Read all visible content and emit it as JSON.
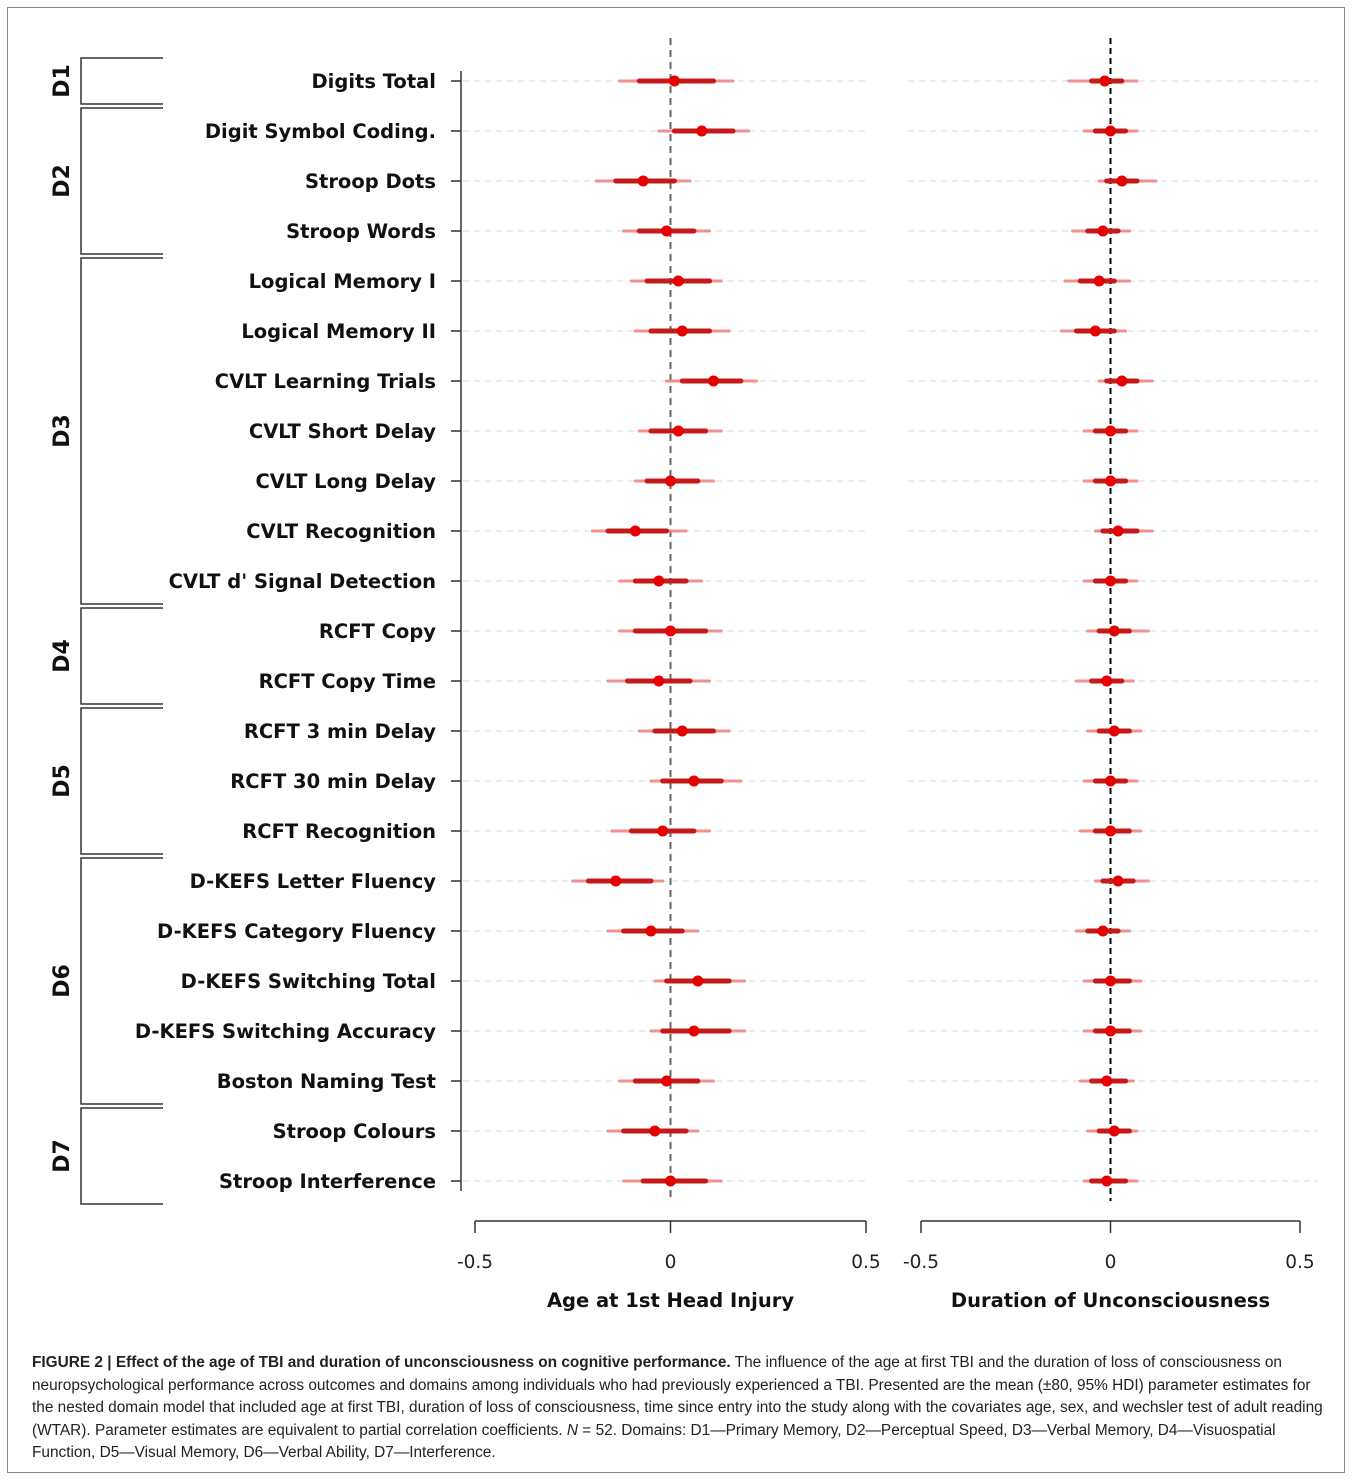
{
  "chart_data": {
    "type": "forest",
    "outcomes": [
      "Digits Total",
      "Digit Symbol Coding.",
      "Stroop Dots",
      "Stroop Words",
      "Logical Memory I",
      "Logical Memory II",
      "CVLT Learning Trials",
      "CVLT Short Delay",
      "CVLT Long Delay",
      "CVLT Recognition",
      "CVLT d' Signal Detection",
      "RCFT Copy",
      "RCFT Copy Time",
      "RCFT 3 min Delay",
      "RCFT 30 min Delay",
      "RCFT Recognition",
      "D-KEFS Letter Fluency",
      "D-KEFS Category Fluency",
      "D-KEFS Switching Total",
      "D-KEFS Switching Accuracy",
      "Boston Naming Test",
      "Stroop Colours",
      "Stroop Interference"
    ],
    "domains": [
      {
        "label": "D1",
        "first": 0,
        "last": 0
      },
      {
        "label": "D2",
        "first": 1,
        "last": 3
      },
      {
        "label": "D3",
        "first": 4,
        "last": 10
      },
      {
        "label": "D4",
        "first": 11,
        "last": 12
      },
      {
        "label": "D5",
        "first": 13,
        "last": 15
      },
      {
        "label": "D6",
        "first": 16,
        "last": 20
      },
      {
        "label": "D7",
        "first": 21,
        "last": 22
      }
    ],
    "panels": [
      {
        "xlabel": "Age at 1st Head Injury",
        "xlim": [
          -0.5,
          0.5
        ],
        "ticks": [
          -0.5,
          0,
          0.5
        ],
        "tick_labels": [
          "-0.5",
          "0",
          "0.5"
        ],
        "estimates": [
          {
            "mean": 0.01,
            "hdi80": [
              -0.08,
              0.11
            ],
            "hdi95": [
              -0.13,
              0.16
            ]
          },
          {
            "mean": 0.08,
            "hdi80": [
              0.01,
              0.16
            ],
            "hdi95": [
              -0.03,
              0.2
            ]
          },
          {
            "mean": -0.07,
            "hdi80": [
              -0.14,
              0.01
            ],
            "hdi95": [
              -0.19,
              0.05
            ]
          },
          {
            "mean": -0.01,
            "hdi80": [
              -0.08,
              0.06
            ],
            "hdi95": [
              -0.12,
              0.1
            ]
          },
          {
            "mean": 0.02,
            "hdi80": [
              -0.06,
              0.1
            ],
            "hdi95": [
              -0.1,
              0.13
            ]
          },
          {
            "mean": 0.03,
            "hdi80": [
              -0.05,
              0.1
            ],
            "hdi95": [
              -0.09,
              0.15
            ]
          },
          {
            "mean": 0.11,
            "hdi80": [
              0.03,
              0.18
            ],
            "hdi95": [
              -0.01,
              0.22
            ]
          },
          {
            "mean": 0.02,
            "hdi80": [
              -0.05,
              0.09
            ],
            "hdi95": [
              -0.08,
              0.13
            ]
          },
          {
            "mean": 0.0,
            "hdi80": [
              -0.06,
              0.07
            ],
            "hdi95": [
              -0.09,
              0.11
            ]
          },
          {
            "mean": -0.09,
            "hdi80": [
              -0.16,
              -0.01
            ],
            "hdi95": [
              -0.2,
              0.04
            ]
          },
          {
            "mean": -0.03,
            "hdi80": [
              -0.09,
              0.04
            ],
            "hdi95": [
              -0.13,
              0.08
            ]
          },
          {
            "mean": 0.0,
            "hdi80": [
              -0.09,
              0.09
            ],
            "hdi95": [
              -0.13,
              0.13
            ]
          },
          {
            "mean": -0.03,
            "hdi80": [
              -0.11,
              0.05
            ],
            "hdi95": [
              -0.16,
              0.1
            ]
          },
          {
            "mean": 0.03,
            "hdi80": [
              -0.04,
              0.11
            ],
            "hdi95": [
              -0.08,
              0.15
            ]
          },
          {
            "mean": 0.06,
            "hdi80": [
              -0.02,
              0.13
            ],
            "hdi95": [
              -0.05,
              0.18
            ]
          },
          {
            "mean": -0.02,
            "hdi80": [
              -0.1,
              0.06
            ],
            "hdi95": [
              -0.15,
              0.1
            ]
          },
          {
            "mean": -0.14,
            "hdi80": [
              -0.21,
              -0.05
            ],
            "hdi95": [
              -0.25,
              -0.02
            ]
          },
          {
            "mean": -0.05,
            "hdi80": [
              -0.12,
              0.03
            ],
            "hdi95": [
              -0.16,
              0.07
            ]
          },
          {
            "mean": 0.07,
            "hdi80": [
              -0.01,
              0.15
            ],
            "hdi95": [
              -0.04,
              0.19
            ]
          },
          {
            "mean": 0.06,
            "hdi80": [
              -0.02,
              0.15
            ],
            "hdi95": [
              -0.05,
              0.19
            ]
          },
          {
            "mean": -0.01,
            "hdi80": [
              -0.09,
              0.07
            ],
            "hdi95": [
              -0.13,
              0.11
            ]
          },
          {
            "mean": -0.04,
            "hdi80": [
              -0.12,
              0.04
            ],
            "hdi95": [
              -0.16,
              0.07
            ]
          },
          {
            "mean": 0.0,
            "hdi80": [
              -0.07,
              0.09
            ],
            "hdi95": [
              -0.12,
              0.13
            ]
          }
        ]
      },
      {
        "xlabel": "Duration of Unconsciousness",
        "xlim": [
          -0.5,
          0.5
        ],
        "ticks": [
          -0.5,
          0,
          0.5
        ],
        "tick_labels": [
          "-0.5",
          "0",
          "0.5"
        ],
        "estimates": [
          {
            "mean": -0.015,
            "hdi80": [
              -0.05,
              0.03
            ],
            "hdi95": [
              -0.11,
              0.07
            ]
          },
          {
            "mean": 0.0,
            "hdi80": [
              -0.04,
              0.04
            ],
            "hdi95": [
              -0.07,
              0.07
            ]
          },
          {
            "mean": 0.03,
            "hdi80": [
              -0.01,
              0.07
            ],
            "hdi95": [
              -0.03,
              0.12
            ]
          },
          {
            "mean": -0.02,
            "hdi80": [
              -0.06,
              0.02
            ],
            "hdi95": [
              -0.1,
              0.05
            ]
          },
          {
            "mean": -0.03,
            "hdi80": [
              -0.08,
              0.01
            ],
            "hdi95": [
              -0.12,
              0.05
            ]
          },
          {
            "mean": -0.04,
            "hdi80": [
              -0.09,
              0.01
            ],
            "hdi95": [
              -0.13,
              0.04
            ]
          },
          {
            "mean": 0.03,
            "hdi80": [
              -0.01,
              0.07
            ],
            "hdi95": [
              -0.03,
              0.11
            ]
          },
          {
            "mean": 0.0,
            "hdi80": [
              -0.04,
              0.04
            ],
            "hdi95": [
              -0.07,
              0.07
            ]
          },
          {
            "mean": 0.0,
            "hdi80": [
              -0.04,
              0.04
            ],
            "hdi95": [
              -0.07,
              0.07
            ]
          },
          {
            "mean": 0.02,
            "hdi80": [
              -0.02,
              0.07
            ],
            "hdi95": [
              -0.04,
              0.11
            ]
          },
          {
            "mean": 0.0,
            "hdi80": [
              -0.04,
              0.04
            ],
            "hdi95": [
              -0.07,
              0.07
            ]
          },
          {
            "mean": 0.01,
            "hdi80": [
              -0.03,
              0.05
            ],
            "hdi95": [
              -0.06,
              0.1
            ]
          },
          {
            "mean": -0.01,
            "hdi80": [
              -0.05,
              0.03
            ],
            "hdi95": [
              -0.09,
              0.06
            ]
          },
          {
            "mean": 0.01,
            "hdi80": [
              -0.03,
              0.05
            ],
            "hdi95": [
              -0.06,
              0.08
            ]
          },
          {
            "mean": 0.0,
            "hdi80": [
              -0.04,
              0.04
            ],
            "hdi95": [
              -0.07,
              0.07
            ]
          },
          {
            "mean": 0.0,
            "hdi80": [
              -0.04,
              0.05
            ],
            "hdi95": [
              -0.08,
              0.08
            ]
          },
          {
            "mean": 0.02,
            "hdi80": [
              -0.02,
              0.06
            ],
            "hdi95": [
              -0.04,
              0.1
            ]
          },
          {
            "mean": -0.02,
            "hdi80": [
              -0.06,
              0.02
            ],
            "hdi95": [
              -0.09,
              0.05
            ]
          },
          {
            "mean": 0.0,
            "hdi80": [
              -0.04,
              0.05
            ],
            "hdi95": [
              -0.07,
              0.08
            ]
          },
          {
            "mean": 0.0,
            "hdi80": [
              -0.04,
              0.05
            ],
            "hdi95": [
              -0.07,
              0.08
            ]
          },
          {
            "mean": -0.01,
            "hdi80": [
              -0.05,
              0.04
            ],
            "hdi95": [
              -0.08,
              0.06
            ]
          },
          {
            "mean": 0.01,
            "hdi80": [
              -0.03,
              0.05
            ],
            "hdi95": [
              -0.06,
              0.07
            ]
          },
          {
            "mean": -0.01,
            "hdi80": [
              -0.05,
              0.04
            ],
            "hdi95": [
              -0.07,
              0.07
            ]
          }
        ]
      }
    ]
  },
  "caption": {
    "label": "FIGURE 2 | ",
    "title": "Effect of the age of TBI and duration of unconsciousness on cognitive performance.",
    "text_1": " The influence of the age at first TBI and the duration of loss of consciousness on neuropsychological performance across outcomes and domains among individuals who had previously experienced a TBI. Presented are the mean (±80, 95% HDI) parameter estimates for the nested domain model that included age at first TBI, duration of loss of consciousness, time since entry into the study along with the covariates age, sex, and wechsler test of adult reading (WTAR). Parameter estimates are equivalent to partial correlation coefficients. ",
    "n_symbol": "N",
    "text_2": " = 52. Domains: D1—Primary Memory, D2—Perceptual Speed, D3—Verbal Memory, D4—Visuospatial Function, D5—Visual Memory, D6—Verbal Ability, D7—Interference."
  },
  "colors": {
    "point": "#e60000",
    "hdi80": "#c41a1a",
    "hdi95": "#f08080",
    "guide": "#d8d8d8",
    "axis": "#333333",
    "zero_left": "#666666",
    "zero_right": "#000000"
  }
}
